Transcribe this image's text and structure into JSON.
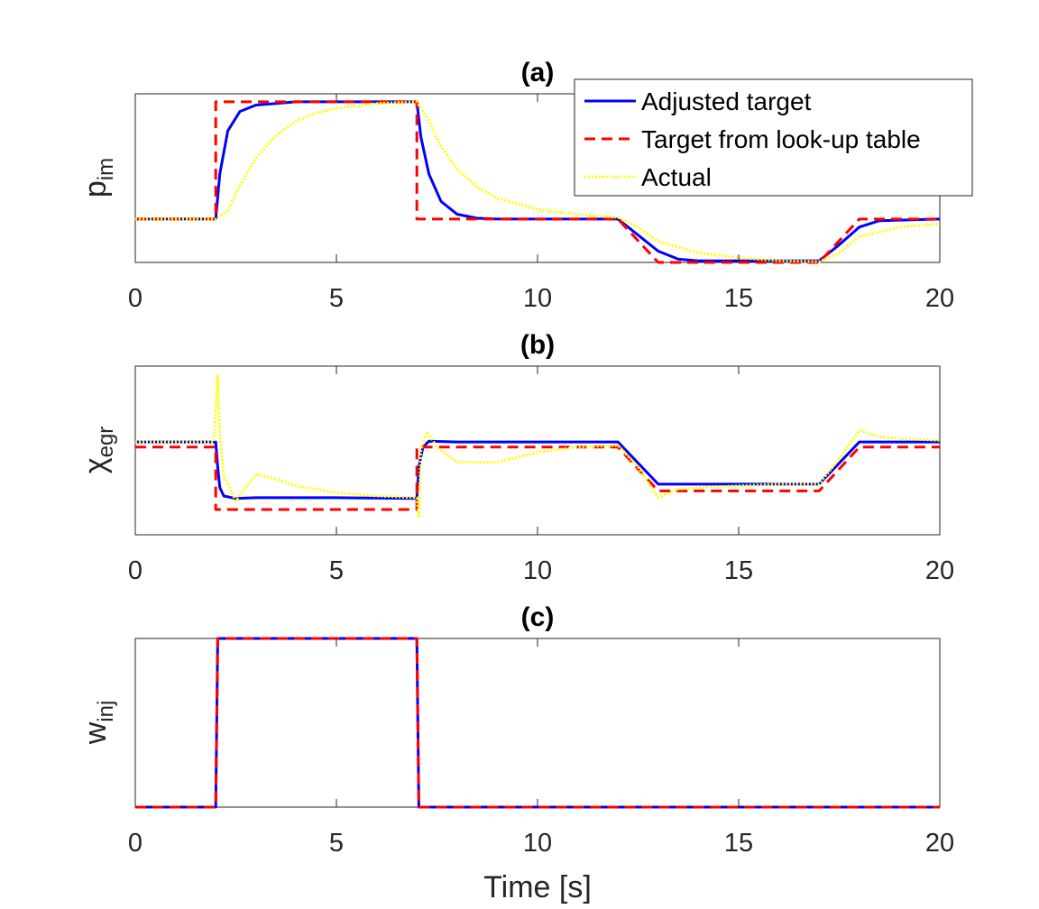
{
  "chart_data": [
    {
      "type": "line",
      "panel_title": "(a)",
      "ylabel": "p",
      "ylabel_sub": "im",
      "xlabel": "",
      "xlim": [
        0,
        20
      ],
      "xticks": [
        0,
        5,
        10,
        15,
        20
      ],
      "yticks": [],
      "ylim": [
        0,
        1.05
      ],
      "legend": {
        "placement": "top-right",
        "entries": [
          "Adjusted target",
          "Target from look-up table",
          "Actual"
        ]
      },
      "series": [
        {
          "name": "Adjusted target",
          "color": "#0000ff",
          "style": "solid",
          "x": [
            0,
            2,
            2.1,
            2.3,
            2.6,
            3.0,
            3.5,
            4.0,
            5.0,
            7.0,
            7.1,
            7.3,
            7.6,
            8.0,
            8.5,
            9.0,
            12.0,
            12.5,
            13.0,
            13.5,
            14.0,
            17.0,
            17.5,
            18.0,
            18.5,
            20.0
          ],
          "y": [
            0.27,
            0.27,
            0.55,
            0.82,
            0.94,
            0.98,
            0.99,
            1.0,
            1.0,
            1.0,
            0.78,
            0.55,
            0.38,
            0.3,
            0.275,
            0.27,
            0.27,
            0.17,
            0.07,
            0.02,
            0.01,
            0.01,
            0.11,
            0.22,
            0.26,
            0.27
          ]
        },
        {
          "name": "Target from look-up table",
          "color": "#ff0000",
          "style": "dashed",
          "x": [
            0,
            2,
            2,
            7,
            7,
            12,
            13,
            17,
            18,
            20
          ],
          "y": [
            0.27,
            0.27,
            1.0,
            1.0,
            0.27,
            0.27,
            0.0,
            0.0,
            0.27,
            0.27
          ]
        },
        {
          "name": "Actual",
          "color": "#ffff00",
          "style": "dotted",
          "x": [
            0,
            2,
            2.3,
            2.6,
            3.0,
            3.5,
            4.0,
            4.5,
            5.0,
            6.0,
            7.0,
            7.3,
            7.6,
            8.0,
            8.5,
            9.0,
            10.0,
            11.0,
            12.0,
            12.5,
            13.0,
            14.0,
            15.0,
            16.0,
            17.0,
            17.5,
            18.0,
            19.0,
            20.0
          ],
          "y": [
            0.27,
            0.27,
            0.32,
            0.48,
            0.65,
            0.79,
            0.88,
            0.93,
            0.96,
            0.99,
            1.0,
            0.88,
            0.72,
            0.58,
            0.47,
            0.4,
            0.33,
            0.3,
            0.28,
            0.22,
            0.13,
            0.06,
            0.03,
            0.01,
            0.005,
            0.06,
            0.16,
            0.22,
            0.24
          ]
        }
      ]
    },
    {
      "type": "line",
      "panel_title": "(b)",
      "ylabel": "χ",
      "ylabel_sub": "egr",
      "xlabel": "",
      "xlim": [
        0,
        20
      ],
      "xticks": [
        0,
        5,
        10,
        15,
        20
      ],
      "yticks": [],
      "ylim": [
        0,
        1
      ],
      "series": [
        {
          "name": "Adjusted target",
          "color": "#0000ff",
          "style": "solid",
          "x": [
            0,
            2,
            2.05,
            2.1,
            2.2,
            2.5,
            3.0,
            5.0,
            7.0,
            7.05,
            7.15,
            7.3,
            8.0,
            12.0,
            13.0,
            17.0,
            18.0,
            20.0
          ],
          "y": [
            0.55,
            0.55,
            0.4,
            0.28,
            0.23,
            0.215,
            0.22,
            0.22,
            0.215,
            0.4,
            0.52,
            0.555,
            0.55,
            0.55,
            0.3,
            0.3,
            0.55,
            0.55
          ]
        },
        {
          "name": "Target from look-up table",
          "color": "#ff0000",
          "style": "dashed",
          "x": [
            0,
            2,
            2,
            7,
            7,
            12,
            13,
            17,
            18,
            20
          ],
          "y": [
            0.52,
            0.52,
            0.15,
            0.15,
            0.52,
            0.52,
            0.26,
            0.26,
            0.52,
            0.52
          ]
        },
        {
          "name": "Actual",
          "color": "#ffff00",
          "style": "dotted",
          "x": [
            0,
            1.95,
            2.05,
            2.1,
            2.2,
            2.5,
            3.0,
            3.5,
            4.0,
            5.0,
            6.0,
            7.0,
            7.05,
            7.1,
            7.25,
            7.5,
            8.0,
            9.0,
            10.0,
            11.0,
            12.0,
            12.5,
            13.0,
            13.5,
            14.0,
            15.0,
            16.0,
            17.0,
            17.5,
            18.0,
            18.5,
            19.0,
            20.0
          ],
          "y": [
            0.55,
            0.55,
            0.94,
            0.6,
            0.35,
            0.2,
            0.36,
            0.33,
            0.29,
            0.25,
            0.23,
            0.22,
            0.1,
            0.5,
            0.61,
            0.52,
            0.43,
            0.43,
            0.49,
            0.52,
            0.53,
            0.4,
            0.22,
            0.27,
            0.28,
            0.29,
            0.3,
            0.3,
            0.45,
            0.62,
            0.58,
            0.57,
            0.56
          ]
        }
      ]
    },
    {
      "type": "line",
      "panel_title": "(c)",
      "ylabel": "w",
      "ylabel_sub": "inj",
      "xlabel": "Time [s]",
      "xlim": [
        0,
        20
      ],
      "xticks": [
        0,
        5,
        10,
        15,
        20
      ],
      "yticks": [],
      "ylim": [
        0,
        1
      ],
      "series": [
        {
          "name": "Adjusted target",
          "color": "#0000ff",
          "style": "solid",
          "x": [
            0,
            2,
            2.05,
            7,
            7.05,
            20
          ],
          "y": [
            0,
            0,
            1,
            1,
            0,
            0
          ]
        },
        {
          "name": "Target from look-up table",
          "color": "#ff0000",
          "style": "dashed",
          "x": [
            0,
            2,
            2.05,
            7,
            7.05,
            20
          ],
          "y": [
            0,
            0,
            1,
            1,
            0,
            0
          ]
        }
      ]
    }
  ]
}
